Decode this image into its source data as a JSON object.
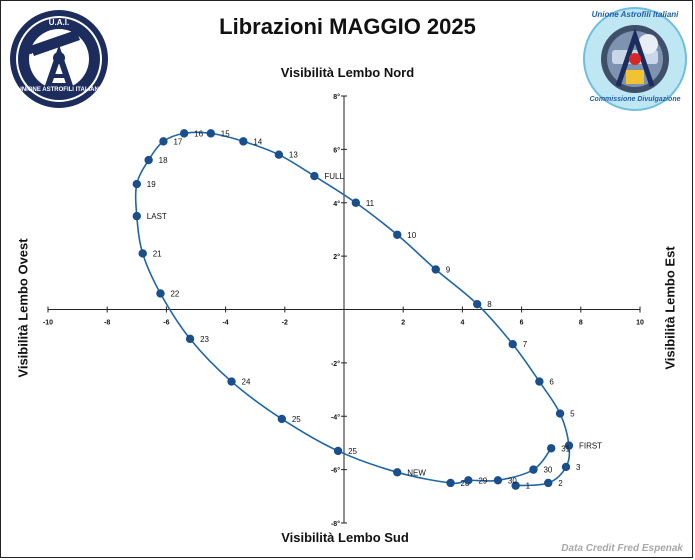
{
  "title": "Librazioni MAGGIO 2025",
  "credit": "Data Credit Fred Espenak",
  "logos": {
    "left_text": [
      "U.A.I.",
      "UNIONE ASTROFILI ITALIANI"
    ],
    "right_text": [
      "Unione Astrofili Italiani",
      "Commissione Divulgazione"
    ]
  },
  "colors": {
    "line": "#1f66a8",
    "marker": "#1a4f8c",
    "axis": "#222222"
  },
  "chart_data": {
    "type": "line",
    "title": "Librazioni MAGGIO 2025",
    "axis_labels": {
      "top": "Visibilità Lembo Nord",
      "bottom": "Visibilità Lembo Sud",
      "left": "Visibilità Lembo  Ovest",
      "right": "Visibilità Lembo  Est"
    },
    "xlim": [
      -10,
      10
    ],
    "ylim": [
      -8,
      8
    ],
    "x_ticks": [
      "-10",
      "-8",
      "-6",
      "-4",
      "-2",
      "0",
      "2",
      "4",
      "6",
      "8",
      "10"
    ],
    "y_ticks": [
      "8°",
      "6°",
      "4°",
      "2°",
      "0",
      "-2°",
      "-4°",
      "-6°",
      "-8°"
    ],
    "grid": false,
    "points": [
      {
        "label": "1",
        "x": 5.8,
        "y": -6.6
      },
      {
        "label": "2",
        "x": 6.9,
        "y": -6.5
      },
      {
        "label": "3",
        "x": 7.5,
        "y": -5.9
      },
      {
        "label": "FIRST",
        "x": 7.6,
        "y": -5.1
      },
      {
        "label": "5",
        "x": 7.3,
        "y": -3.9
      },
      {
        "label": "6",
        "x": 6.6,
        "y": -2.7
      },
      {
        "label": "7",
        "x": 5.7,
        "y": -1.3
      },
      {
        "label": "8",
        "x": 4.5,
        "y": 0.2
      },
      {
        "label": "9",
        "x": 3.1,
        "y": 1.5
      },
      {
        "label": "10",
        "x": 1.8,
        "y": 2.8
      },
      {
        "label": "11",
        "x": 0.4,
        "y": 4.0
      },
      {
        "label": "FULL",
        "x": -1.0,
        "y": 5.0
      },
      {
        "label": "13",
        "x": -2.2,
        "y": 5.8
      },
      {
        "label": "14",
        "x": -3.4,
        "y": 6.3
      },
      {
        "label": "15",
        "x": -4.5,
        "y": 6.6
      },
      {
        "label": "16",
        "x": -5.4,
        "y": 6.6
      },
      {
        "label": "17",
        "x": -6.1,
        "y": 6.3
      },
      {
        "label": "18",
        "x": -6.6,
        "y": 5.6
      },
      {
        "label": "19",
        "x": -7.0,
        "y": 4.7
      },
      {
        "label": "LAST",
        "x": -7.0,
        "y": 3.5
      },
      {
        "label": "21",
        "x": -6.8,
        "y": 2.1
      },
      {
        "label": "22",
        "x": -6.2,
        "y": 0.6
      },
      {
        "label": "23",
        "x": -5.2,
        "y": -1.1
      },
      {
        "label": "24",
        "x": -3.8,
        "y": -2.7
      },
      {
        "label": "25",
        "x": -2.1,
        "y": -4.1
      },
      {
        "label": "25",
        "x": -0.2,
        "y": -5.3
      },
      {
        "label": "NEW",
        "x": 1.8,
        "y": -6.1
      },
      {
        "label": "28",
        "x": 3.6,
        "y": -6.5
      },
      {
        "label": "29",
        "x": 4.2,
        "y": -6.4
      },
      {
        "label": "30",
        "x": 5.2,
        "y": -6.4
      },
      {
        "label": "30",
        "x": 6.4,
        "y": -6.0
      },
      {
        "label": "31",
        "x": 7.0,
        "y": -5.2
      }
    ]
  }
}
